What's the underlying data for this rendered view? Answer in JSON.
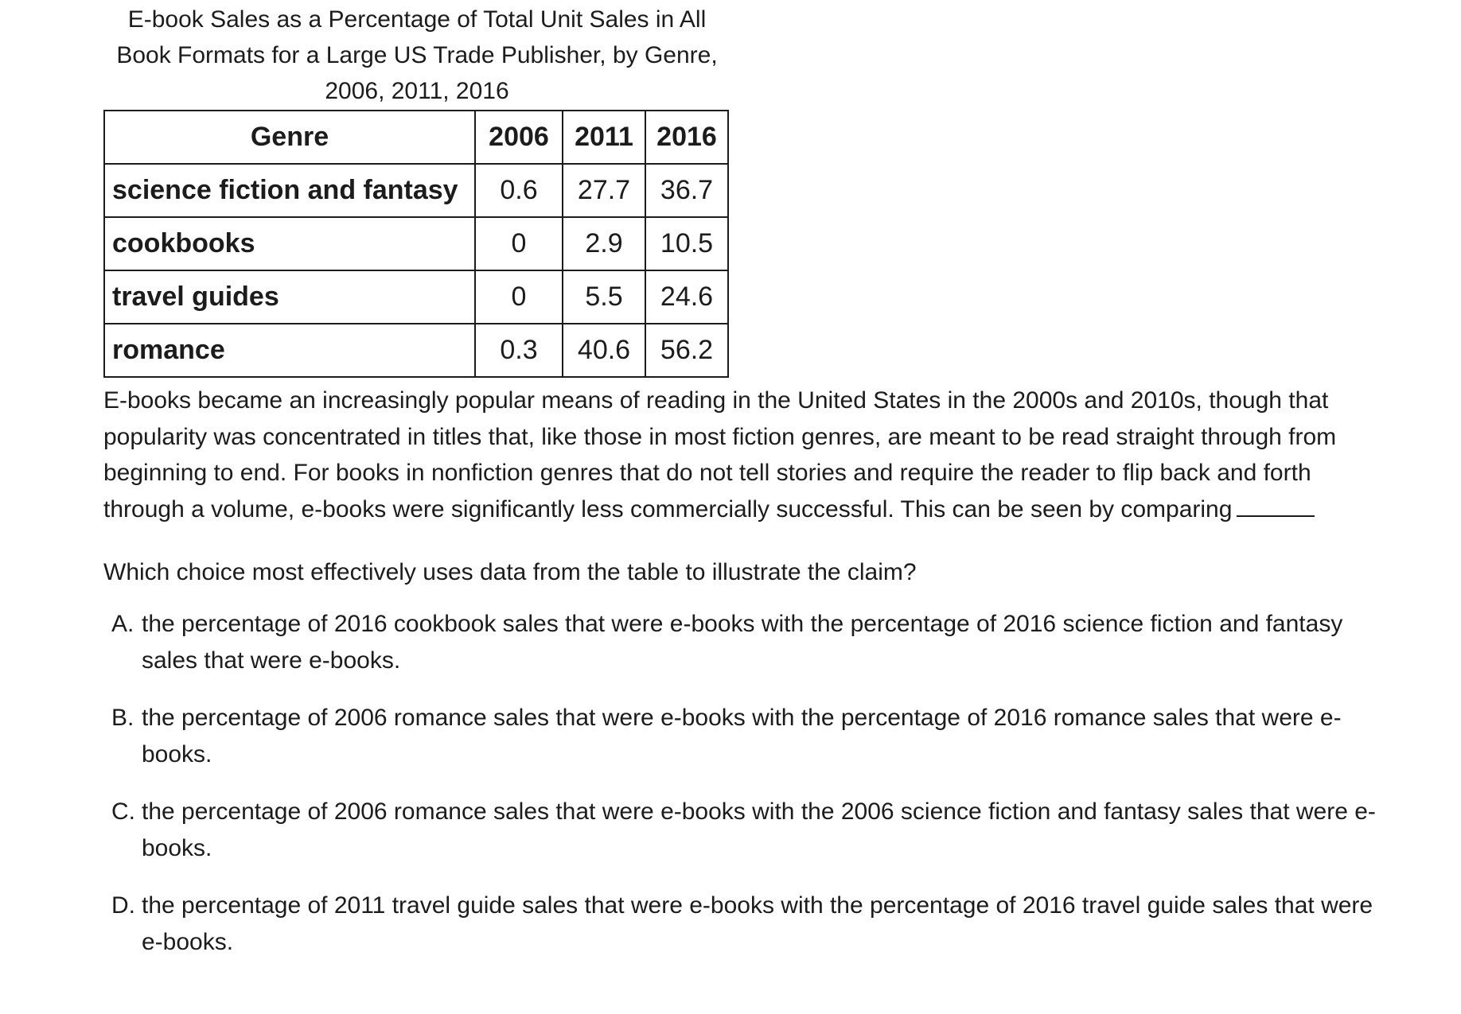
{
  "table": {
    "caption_lines": [
      "E-book Sales as a Percentage of Total Unit Sales in All",
      "Book Formats for a Large US Trade Publisher, by Genre,",
      "2006, 2011, 2016"
    ],
    "headers": [
      "Genre",
      "2006",
      "2011",
      "2016"
    ],
    "rows": [
      {
        "genre": "science fiction and fantasy",
        "v2006": "0.6",
        "v2011": "27.7",
        "v2016": "36.7"
      },
      {
        "genre": "cookbooks",
        "v2006": "0",
        "v2011": "2.9",
        "v2016": "10.5"
      },
      {
        "genre": "travel guides",
        "v2006": "0",
        "v2011": "5.5",
        "v2016": "24.6"
      },
      {
        "genre": "romance",
        "v2006": "0.3",
        "v2011": "40.6",
        "v2016": "56.2"
      }
    ]
  },
  "passage": "E-books became an increasingly popular means of reading in the United States in the 2000s and 2010s, though that popularity was concentrated in titles that, like those in most fiction genres, are meant to be read straight through from beginning to end. For books in nonfiction genres that do not tell stories and require the reader to flip back and forth through a volume, e-books were significantly less commercially successful. This can be seen by comparing",
  "question": "Which choice most effectively uses data from the table to illustrate the claim?",
  "choices": [
    {
      "letter": "A.",
      "text": "the percentage of 2016 cookbook sales that were e-books with the percentage of 2016 science fiction and fantasy sales that were e-books."
    },
    {
      "letter": "B.",
      "text": "the percentage of 2006 romance sales that were e-books with the percentage of 2016 romance sales that were e-books."
    },
    {
      "letter": "C.",
      "text": "the percentage of 2006 romance sales that were e-books with the 2006 science fiction and fantasy sales that were e-books."
    },
    {
      "letter": "D.",
      "text": "the percentage of 2011 travel guide sales that were e-books with the percentage of 2016 travel guide sales that were e-books."
    }
  ]
}
